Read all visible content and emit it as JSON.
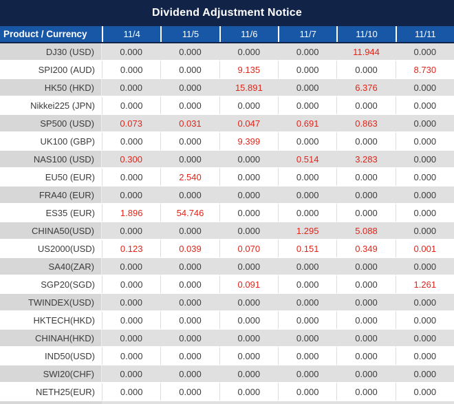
{
  "title": "Dividend Adjustment Notice",
  "table": {
    "product_header": "Product / Currency",
    "date_headers": [
      "11/4",
      "11/5",
      "11/6",
      "11/7",
      "11/10",
      "11/11"
    ],
    "rows": [
      {
        "product": "DJ30 (USD)",
        "values": [
          "0.000",
          "0.000",
          "0.000",
          "0.000",
          "11.944",
          "0.000"
        ],
        "red_cols": [
          4
        ]
      },
      {
        "product": "SPI200 (AUD)",
        "values": [
          "0.000",
          "0.000",
          "9.135",
          "0.000",
          "0.000",
          "8.730"
        ],
        "red_cols": [
          2,
          5
        ]
      },
      {
        "product": "HK50 (HKD)",
        "values": [
          "0.000",
          "0.000",
          "15.891",
          "0.000",
          "6.376",
          "0.000"
        ],
        "red_cols": [
          2,
          4
        ]
      },
      {
        "product": "Nikkei225 (JPN)",
        "values": [
          "0.000",
          "0.000",
          "0.000",
          "0.000",
          "0.000",
          "0.000"
        ],
        "red_cols": []
      },
      {
        "product": "SP500 (USD)",
        "values": [
          "0.073",
          "0.031",
          "0.047",
          "0.691",
          "0.863",
          "0.000"
        ],
        "red_cols": [
          0,
          1,
          2,
          3,
          4
        ]
      },
      {
        "product": "UK100 (GBP)",
        "values": [
          "0.000",
          "0.000",
          "9.399",
          "0.000",
          "0.000",
          "0.000"
        ],
        "red_cols": [
          2
        ]
      },
      {
        "product": "NAS100 (USD)",
        "values": [
          "0.300",
          "0.000",
          "0.000",
          "0.514",
          "3.283",
          "0.000"
        ],
        "red_cols": [
          0,
          3,
          4
        ]
      },
      {
        "product": "EU50 (EUR)",
        "values": [
          "0.000",
          "2.540",
          "0.000",
          "0.000",
          "0.000",
          "0.000"
        ],
        "red_cols": [
          1
        ]
      },
      {
        "product": "FRA40 (EUR)",
        "values": [
          "0.000",
          "0.000",
          "0.000",
          "0.000",
          "0.000",
          "0.000"
        ],
        "red_cols": []
      },
      {
        "product": "ES35 (EUR)",
        "values": [
          "1.896",
          "54.746",
          "0.000",
          "0.000",
          "0.000",
          "0.000"
        ],
        "red_cols": [
          0,
          1
        ]
      },
      {
        "product": "CHINA50(USD)",
        "values": [
          "0.000",
          "0.000",
          "0.000",
          "1.295",
          "5.088",
          "0.000"
        ],
        "red_cols": [
          3,
          4
        ]
      },
      {
        "product": "US2000(USD)",
        "values": [
          "0.123",
          "0.039",
          "0.070",
          "0.151",
          "0.349",
          "0.001"
        ],
        "red_cols": [
          0,
          1,
          2,
          3,
          4,
          5
        ]
      },
      {
        "product": "SA40(ZAR)",
        "values": [
          "0.000",
          "0.000",
          "0.000",
          "0.000",
          "0.000",
          "0.000"
        ],
        "red_cols": []
      },
      {
        "product": "SGP20(SGD)",
        "values": [
          "0.000",
          "0.000",
          "0.091",
          "0.000",
          "0.000",
          "1.261"
        ],
        "red_cols": [
          2,
          5
        ]
      },
      {
        "product": "TWINDEX(USD)",
        "values": [
          "0.000",
          "0.000",
          "0.000",
          "0.000",
          "0.000",
          "0.000"
        ],
        "red_cols": []
      },
      {
        "product": "HKTECH(HKD)",
        "values": [
          "0.000",
          "0.000",
          "0.000",
          "0.000",
          "0.000",
          "0.000"
        ],
        "red_cols": []
      },
      {
        "product": "CHINAH(HKD)",
        "values": [
          "0.000",
          "0.000",
          "0.000",
          "0.000",
          "0.000",
          "0.000"
        ],
        "red_cols": []
      },
      {
        "product": "IND50(USD)",
        "values": [
          "0.000",
          "0.000",
          "0.000",
          "0.000",
          "0.000",
          "0.000"
        ],
        "red_cols": []
      },
      {
        "product": "SWI20(CHF)",
        "values": [
          "0.000",
          "0.000",
          "0.000",
          "0.000",
          "0.000",
          "0.000"
        ],
        "red_cols": []
      },
      {
        "product": "NETH25(EUR)",
        "values": [
          "0.000",
          "0.000",
          "0.000",
          "0.000",
          "0.000",
          "0.000"
        ],
        "red_cols": []
      }
    ]
  },
  "colors": {
    "title_bar_bg": "#112447",
    "header_bg": "#1757A6",
    "header_text": "#FFFFFF",
    "row_gray": "#E0E0E0",
    "row_gray_label": "#D7D7D7",
    "row_white": "#FFFFFF",
    "text_dark": "#3B3B3B",
    "value_red": "#E02419"
  }
}
